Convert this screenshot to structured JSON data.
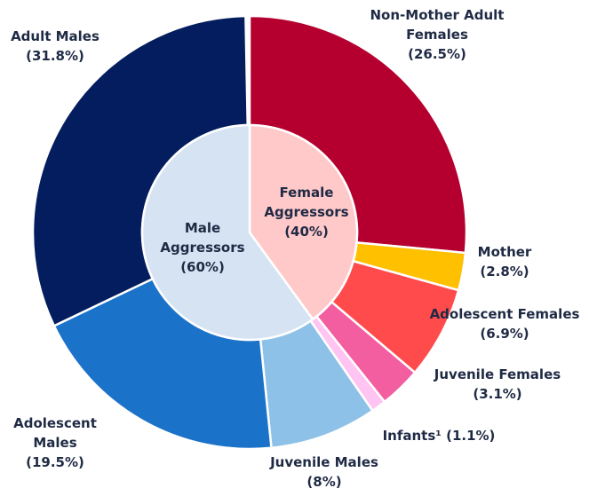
{
  "chart_data": {
    "type": "sunburst",
    "inner": {
      "categories": [
        "Female Aggressors",
        "Male Aggressors"
      ],
      "values": [
        40,
        60
      ],
      "value_labels": [
        "(40%)",
        "(60%)"
      ],
      "colors": [
        "#ffc9c9",
        "#d6e3f3"
      ]
    },
    "outer": {
      "categories": [
        "Non-Mother Adult Females",
        "Mother",
        "Adolescent Females",
        "Juvenile Females",
        "Infants¹",
        "Juvenile Males",
        "Adolescent Males",
        "Adult Males"
      ],
      "values": [
        26.5,
        2.8,
        6.9,
        3.1,
        1.1,
        8,
        19.5,
        31.8
      ],
      "value_labels": [
        "(26.5%)",
        "(2.8%)",
        "(6.9%)",
        "(3.1%)",
        "(1.1%)",
        "(8%)",
        "(19.5%)",
        "(31.8%)"
      ],
      "colors": [
        "#b5002f",
        "#ffc000",
        "#ff4b4b",
        "#f25ea0",
        "#ffc4f2",
        "#8ec1e7",
        "#1b72c9",
        "#041d5e"
      ]
    }
  }
}
